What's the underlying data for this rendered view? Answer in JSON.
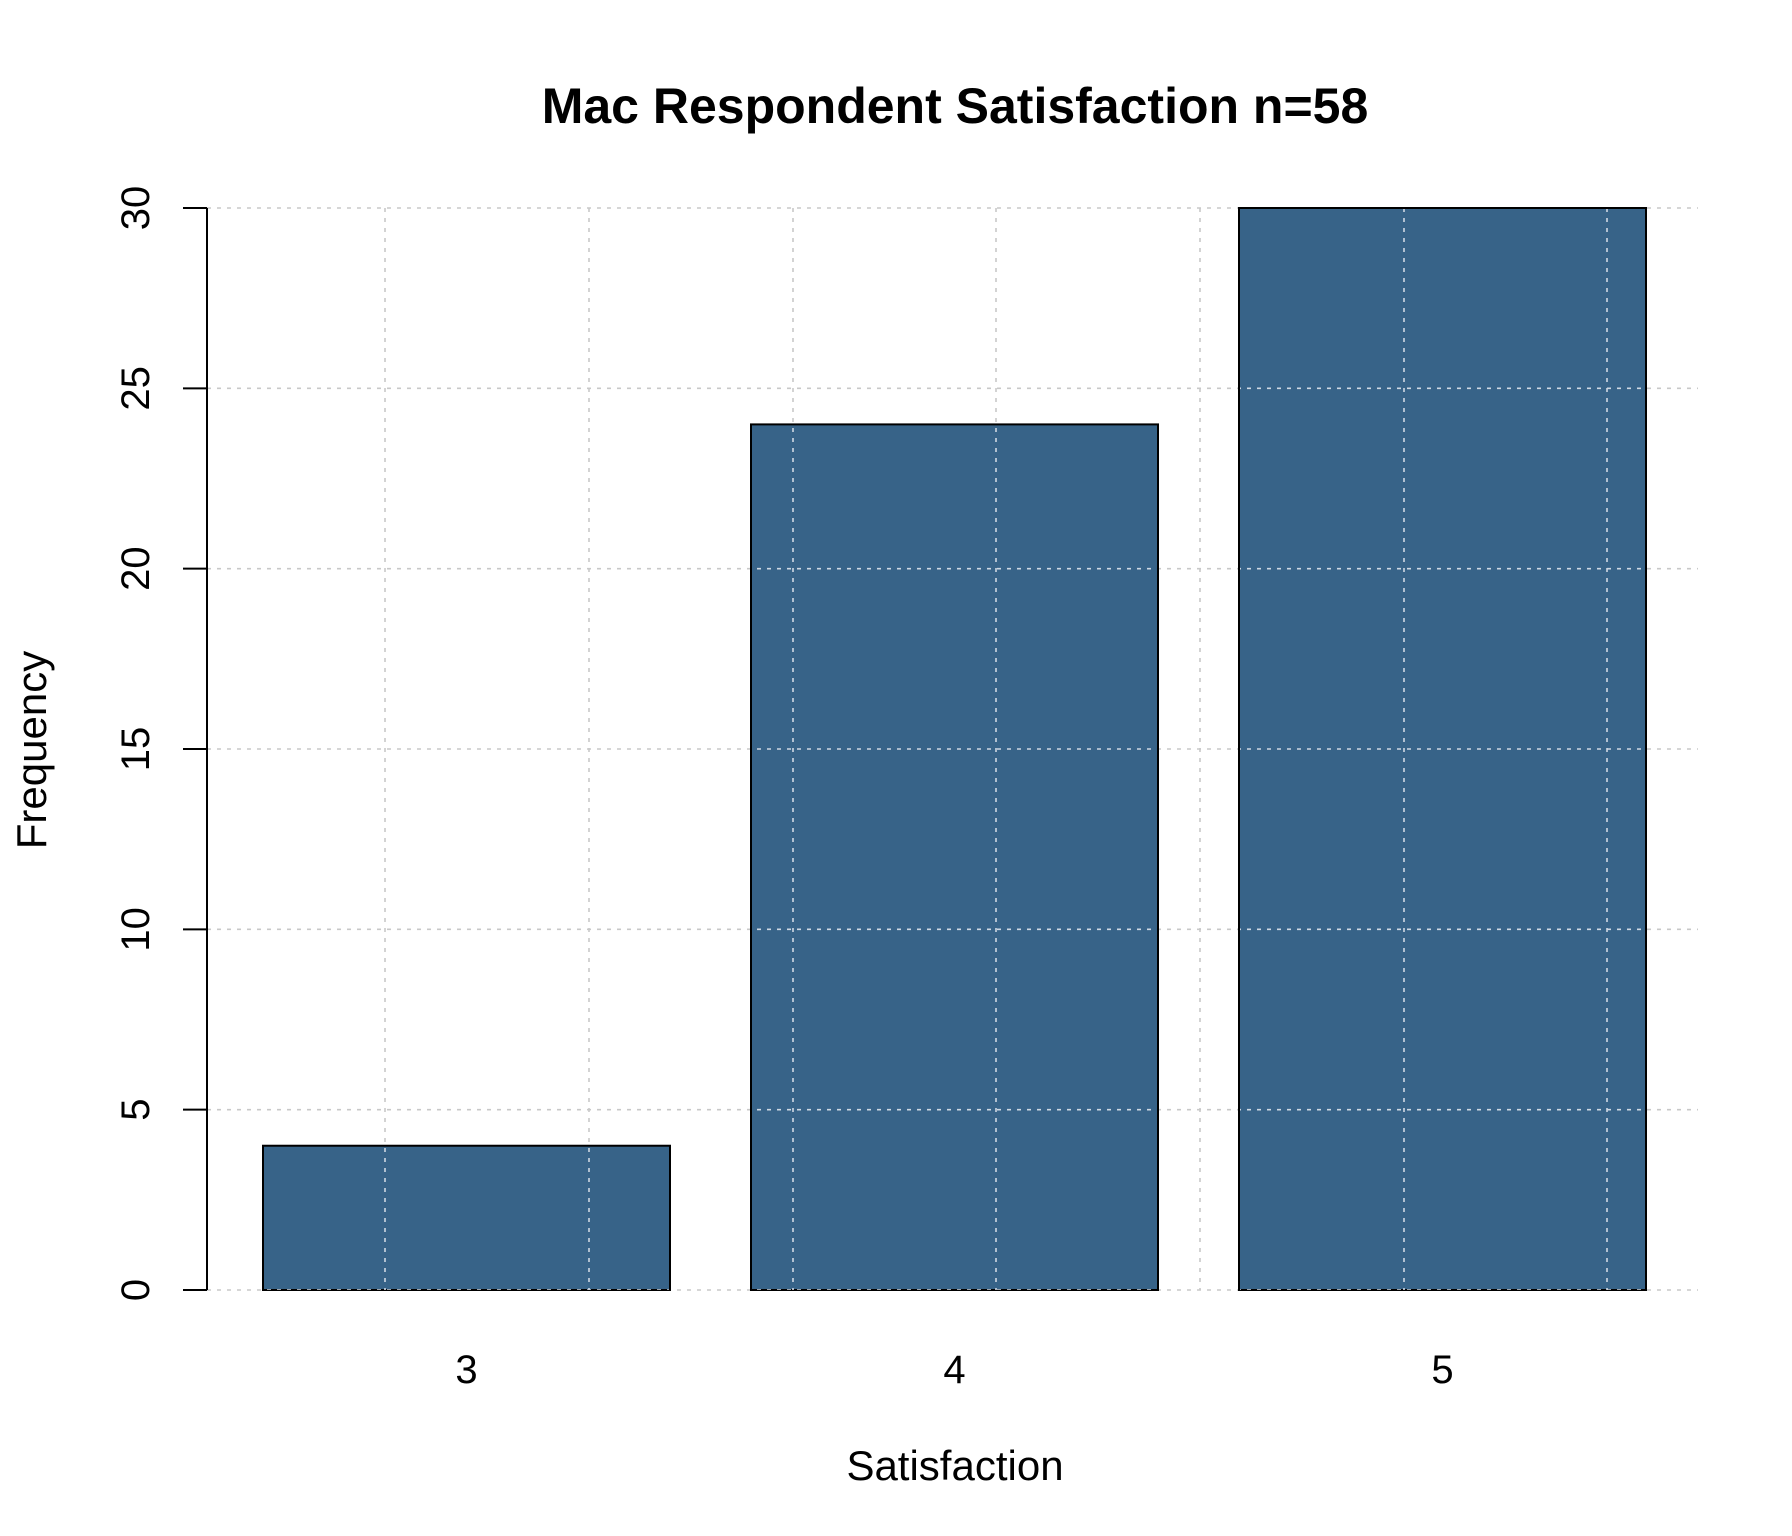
{
  "chart_data": {
    "type": "bar",
    "title": "Mac Respondent Satisfaction n=58",
    "xlabel": "Satisfaction",
    "ylabel": "Frequency",
    "categories": [
      "3",
      "4",
      "5"
    ],
    "values": [
      4,
      24,
      30
    ],
    "ylim": [
      0,
      30
    ],
    "yticks": [
      0,
      5,
      10,
      15,
      20,
      25,
      30
    ],
    "grid": true,
    "colors": {
      "bar": "#376388",
      "grid_outside": "#c8c8c8",
      "grid_on_bar": "#cfd8e3"
    }
  }
}
